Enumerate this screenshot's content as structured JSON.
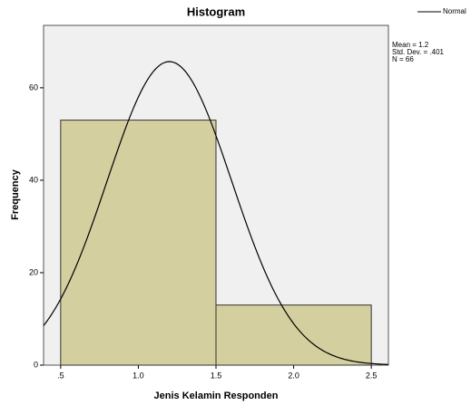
{
  "chart_data": {
    "type": "histogram",
    "title": "Histogram",
    "x_label": "Jenis Kelamin Responden",
    "y_label": "Frequency",
    "bins": [
      0.5,
      1.5,
      2.5
    ],
    "values": [
      53,
      13
    ],
    "color": "#d4cf9f",
    "xlim": [
      0.39,
      2.61
    ],
    "ylim": [
      0,
      73.5
    ],
    "xticks": [
      {
        "value": 0.5,
        "label": ".5"
      },
      {
        "value": 1,
        "label": "1.0"
      },
      {
        "value": 1.5,
        "label": "1.5"
      },
      {
        "value": 2,
        "label": "2.0"
      },
      {
        "value": 2.5,
        "label": "2.5"
      }
    ],
    "yticks": [
      0,
      20,
      40,
      60
    ],
    "legend": {
      "name": "Normal",
      "position": "top-right"
    },
    "stats": [
      {
        "label": "Mean = 1.2",
        "value": 1.2
      },
      {
        "label": "Std. Dev. = .401",
        "value": 0.401
      },
      {
        "label": "N = 66",
        "value": 66
      }
    ]
  }
}
